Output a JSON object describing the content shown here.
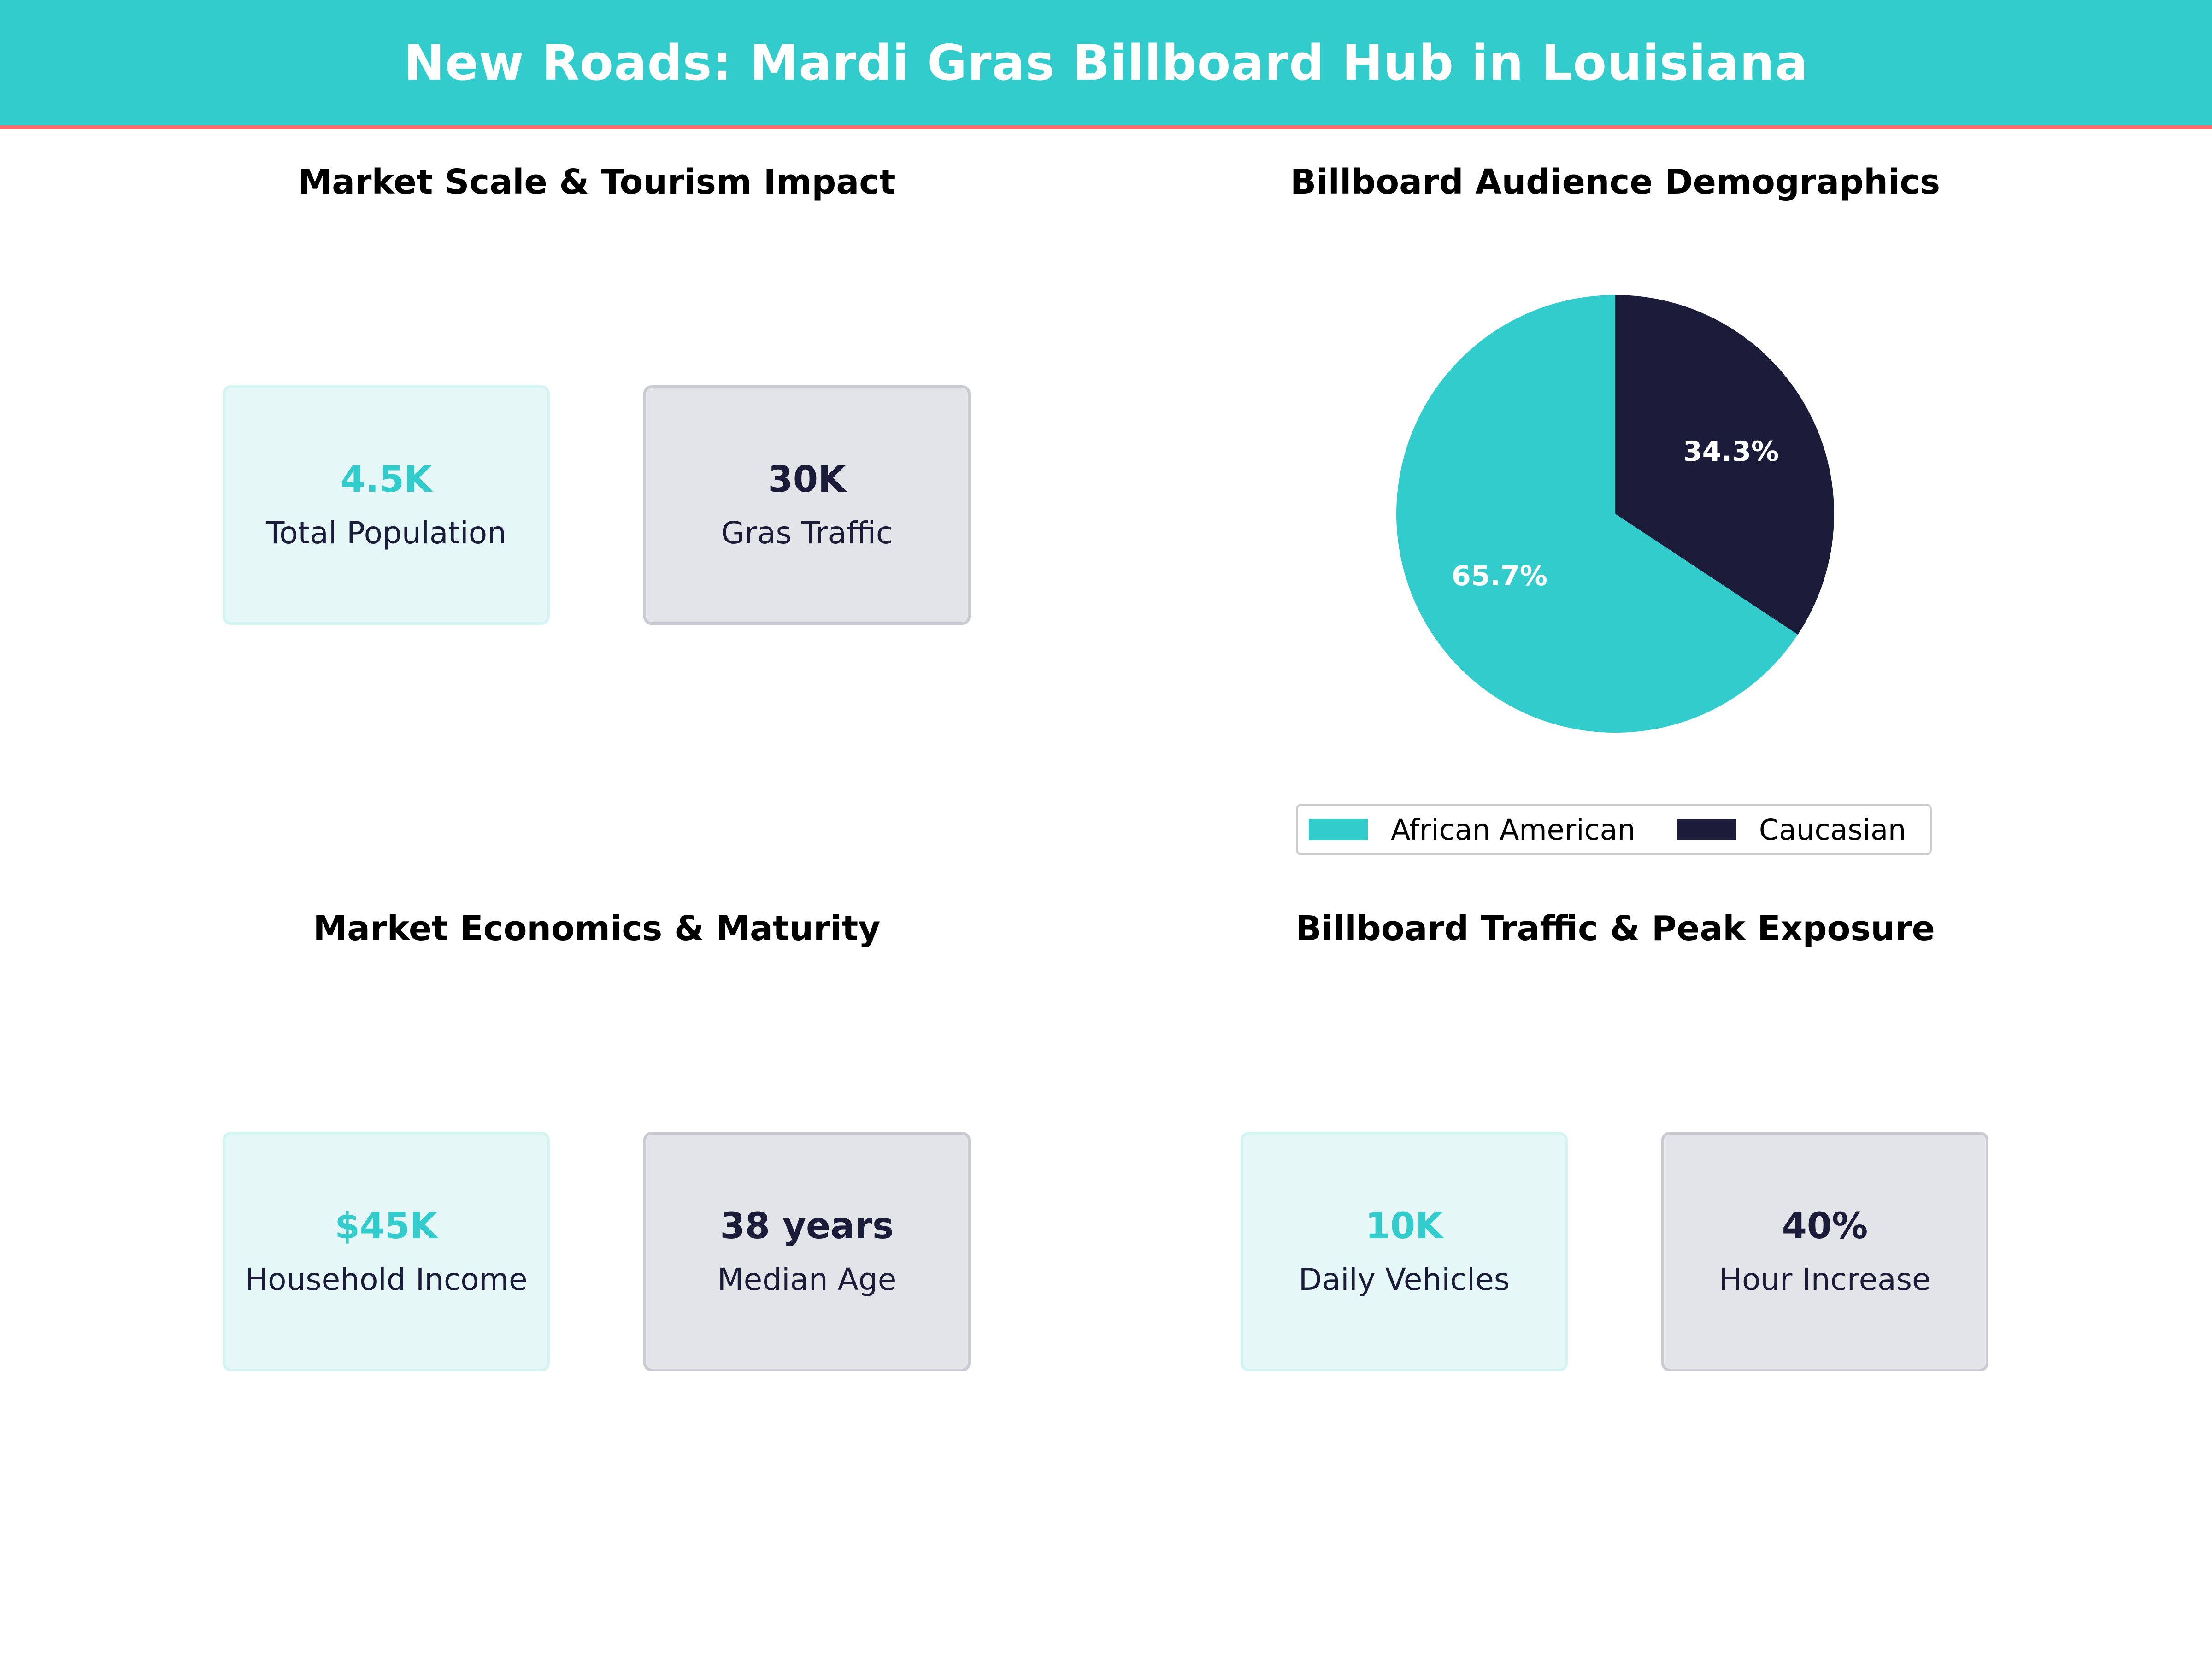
{
  "header": {
    "title": "New Roads: Mardi Gras Billboard Hub in Louisiana"
  },
  "panels": {
    "market_scale": {
      "title": "Market Scale & Tourism Impact",
      "kpis": [
        {
          "value": "4.5K",
          "label": "Total Population",
          "style": "teal"
        },
        {
          "value": "30K",
          "label": "Gras Traffic",
          "style": "navy"
        }
      ]
    },
    "demographics": {
      "title": "Billboard Audience Demographics"
    },
    "economics": {
      "title": "Market Economics & Maturity",
      "kpis": [
        {
          "value": "$45K",
          "label": "Household Income",
          "style": "teal"
        },
        {
          "value": "38 years",
          "label": "Median Age",
          "style": "navy"
        }
      ]
    },
    "traffic": {
      "title": "Billboard Traffic & Peak Exposure",
      "kpis": [
        {
          "value": "10K",
          "label": "Daily Vehicles",
          "style": "teal"
        },
        {
          "value": "40%",
          "label": "Hour Increase",
          "style": "navy"
        }
      ]
    }
  },
  "colors": {
    "teal": "#33cccc",
    "navy": "#1a1c3a",
    "accent_line": "#ff6b6b"
  },
  "chart_data": {
    "type": "pie",
    "title": "Billboard Audience Demographics",
    "categories": [
      "African American",
      "Caucasian"
    ],
    "values": [
      65.7,
      34.3
    ],
    "labels": [
      "65.7%",
      "34.3%"
    ],
    "colors": [
      "#33cccc",
      "#1a1c3a"
    ],
    "start_angle_deg": 90,
    "direction": "counterclockwise",
    "legend": "bottom-center"
  }
}
